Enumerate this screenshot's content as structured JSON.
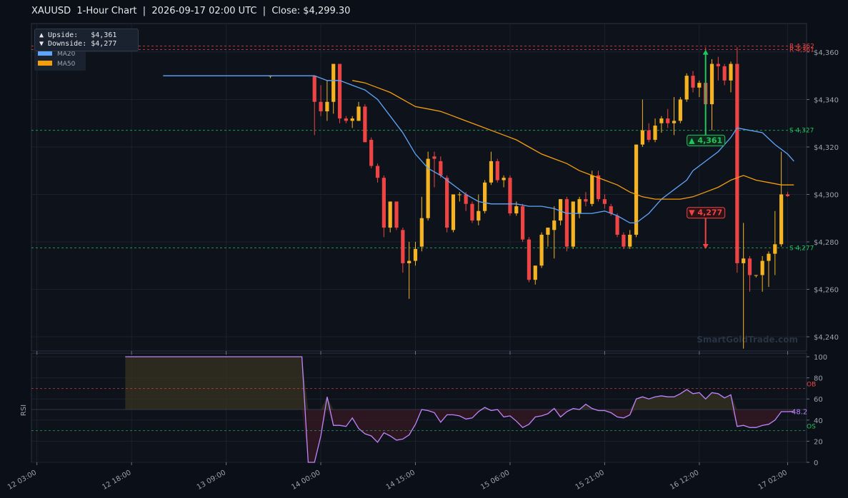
{
  "title": "XAUUSD  1-Hour Chart  |  2026-09-17 02:00 UTC  |  Close: $4,299.30",
  "annotation": {
    "upside": "▲ Upside:   $4,361",
    "downside": "▼ Downside: $4,277"
  },
  "watermark": "SmartGoldTrade.com",
  "colors": {
    "bg": "#0b0f17",
    "up": "#f5b321",
    "down": "#ef4444",
    "ma20": "#60a5fa",
    "ma50": "#f59e0b",
    "rsi": "#c084fc",
    "support": "#22c55e",
    "resistance": "#ef4444"
  },
  "chart_data": [
    {
      "type": "candlestick",
      "title": "XAUUSD  1-Hour Chart",
      "ylim": [
        4234,
        4372
      ],
      "yticks": [
        "$4,240",
        "$4,260",
        "$4,280",
        "$4,300",
        "$4,320",
        "$4,340",
        "$4,360"
      ],
      "xticks": [
        "12 03:00",
        "12 18:00",
        "13 09:00",
        "14 00:00",
        "14 15:00",
        "15 06:00",
        "15 21:00",
        "16 12:00",
        "17 02:00"
      ],
      "legend": [
        "MA20",
        "MA50"
      ],
      "levels": [
        {
          "label": "R 4,362",
          "value": 4362.5,
          "kind": "resistance"
        },
        {
          "label": "R 4,361",
          "value": 4361,
          "kind": "resistance"
        },
        {
          "label": "S 4,327",
          "value": 4327,
          "kind": "support"
        },
        {
          "label": "S 4,277",
          "value": 4277.5,
          "kind": "support"
        }
      ],
      "targets": [
        {
          "label": "▲ 4,361",
          "value": 4361,
          "from": 4325,
          "dir": "up"
        },
        {
          "label": "▼ 4,277",
          "value": 4277,
          "from": 4290,
          "dir": "down"
        }
      ],
      "candles": [
        {
          "i": 37,
          "o": 4350,
          "h": 4350,
          "l": 4349,
          "c": 4350
        },
        {
          "i": 44,
          "o": 4350,
          "h": 4350,
          "l": 4325,
          "c": 4339
        },
        {
          "i": 45,
          "o": 4339,
          "h": 4346,
          "l": 4333,
          "c": 4335
        },
        {
          "i": 46,
          "o": 4335,
          "h": 4348,
          "l": 4331,
          "c": 4339
        },
        {
          "i": 47,
          "o": 4339,
          "h": 4355,
          "l": 4334,
          "c": 4355
        },
        {
          "i": 48,
          "o": 4355,
          "h": 4355,
          "l": 4330,
          "c": 4332
        },
        {
          "i": 49,
          "o": 4332,
          "h": 4333,
          "l": 4330,
          "c": 4331
        },
        {
          "i": 50,
          "o": 4331,
          "h": 4333,
          "l": 4328,
          "c": 4332
        },
        {
          "i": 51,
          "o": 4331,
          "h": 4339,
          "l": 4331,
          "c": 4337
        },
        {
          "i": 52,
          "o": 4337,
          "h": 4338,
          "l": 4322,
          "c": 4322
        },
        {
          "i": 53,
          "o": 4323,
          "h": 4324,
          "l": 4311,
          "c": 4312
        },
        {
          "i": 54,
          "o": 4312,
          "h": 4313,
          "l": 4305,
          "c": 4307
        },
        {
          "i": 55,
          "o": 4307,
          "h": 4308,
          "l": 4282,
          "c": 4286
        },
        {
          "i": 56,
          "o": 4286,
          "h": 4297,
          "l": 4284,
          "c": 4297
        },
        {
          "i": 57,
          "o": 4297,
          "h": 4297,
          "l": 4285,
          "c": 4286
        },
        {
          "i": 58,
          "o": 4285,
          "h": 4286,
          "l": 4267,
          "c": 4271
        },
        {
          "i": 59,
          "o": 4271,
          "h": 4280,
          "l": 4256,
          "c": 4272
        },
        {
          "i": 60,
          "o": 4272,
          "h": 4280,
          "l": 4270,
          "c": 4277
        },
        {
          "i": 61,
          "o": 4278,
          "h": 4299,
          "l": 4276,
          "c": 4290
        },
        {
          "i": 62,
          "o": 4290,
          "h": 4318,
          "l": 4289,
          "c": 4315
        },
        {
          "i": 63,
          "o": 4316,
          "h": 4318,
          "l": 4303,
          "c": 4315
        },
        {
          "i": 64,
          "o": 4314,
          "h": 4316,
          "l": 4307,
          "c": 4308
        },
        {
          "i": 65,
          "o": 4307,
          "h": 4308,
          "l": 4284,
          "c": 4286
        },
        {
          "i": 66,
          "o": 4285,
          "h": 4300,
          "l": 4284,
          "c": 4300
        },
        {
          "i": 67,
          "o": 4300,
          "h": 4301,
          "l": 4297,
          "c": 4300
        },
        {
          "i": 68,
          "o": 4300,
          "h": 4301,
          "l": 4293,
          "c": 4296
        },
        {
          "i": 69,
          "o": 4296,
          "h": 4297,
          "l": 4288,
          "c": 4289
        },
        {
          "i": 70,
          "o": 4289,
          "h": 4300,
          "l": 4287,
          "c": 4293
        },
        {
          "i": 71,
          "o": 4293,
          "h": 4306,
          "l": 4292,
          "c": 4305
        },
        {
          "i": 72,
          "o": 4305,
          "h": 4318,
          "l": 4304,
          "c": 4314
        },
        {
          "i": 73,
          "o": 4314,
          "h": 4315,
          "l": 4305,
          "c": 4306
        },
        {
          "i": 74,
          "o": 4306,
          "h": 4308,
          "l": 4303,
          "c": 4307
        },
        {
          "i": 75,
          "o": 4307,
          "h": 4308,
          "l": 4291,
          "c": 4292
        },
        {
          "i": 76,
          "o": 4292,
          "h": 4297,
          "l": 4291,
          "c": 4295
        },
        {
          "i": 77,
          "o": 4295,
          "h": 4296,
          "l": 4280,
          "c": 4281
        },
        {
          "i": 78,
          "o": 4281,
          "h": 4282,
          "l": 4263,
          "c": 4264
        },
        {
          "i": 79,
          "o": 4264,
          "h": 4270,
          "l": 4262,
          "c": 4270
        },
        {
          "i": 80,
          "o": 4270,
          "h": 4284,
          "l": 4269,
          "c": 4283
        },
        {
          "i": 81,
          "o": 4283,
          "h": 4286,
          "l": 4278,
          "c": 4286
        },
        {
          "i": 82,
          "o": 4285,
          "h": 4295,
          "l": 4273,
          "c": 4289
        },
        {
          "i": 83,
          "o": 4289,
          "h": 4298,
          "l": 4287,
          "c": 4298
        },
        {
          "i": 84,
          "o": 4298,
          "h": 4299,
          "l": 4276,
          "c": 4278
        },
        {
          "i": 85,
          "o": 4278,
          "h": 4297,
          "l": 4277,
          "c": 4297
        },
        {
          "i": 86,
          "o": 4292,
          "h": 4299,
          "l": 4290,
          "c": 4298
        },
        {
          "i": 87,
          "o": 4298,
          "h": 4301,
          "l": 4295,
          "c": 4297
        },
        {
          "i": 88,
          "o": 4296,
          "h": 4310,
          "l": 4295,
          "c": 4308
        },
        {
          "i": 89,
          "o": 4308,
          "h": 4310,
          "l": 4297,
          "c": 4298
        },
        {
          "i": 90,
          "o": 4298,
          "h": 4300,
          "l": 4294,
          "c": 4296
        },
        {
          "i": 91,
          "o": 4295,
          "h": 4296,
          "l": 4291,
          "c": 4292
        },
        {
          "i": 92,
          "o": 4291,
          "h": 4292,
          "l": 4282,
          "c": 4283
        },
        {
          "i": 93,
          "o": 4283,
          "h": 4284,
          "l": 4277,
          "c": 4278
        },
        {
          "i": 94,
          "o": 4278,
          "h": 4285,
          "l": 4277,
          "c": 4283
        },
        {
          "i": 95,
          "o": 4283,
          "h": 4321,
          "l": 4282,
          "c": 4321
        },
        {
          "i": 96,
          "o": 4321,
          "h": 4340,
          "l": 4320,
          "c": 4327
        },
        {
          "i": 97,
          "o": 4327,
          "h": 4330,
          "l": 4322,
          "c": 4323
        },
        {
          "i": 98,
          "o": 4323,
          "h": 4332,
          "l": 4322,
          "c": 4329
        },
        {
          "i": 99,
          "o": 4330,
          "h": 4333,
          "l": 4326,
          "c": 4332
        },
        {
          "i": 100,
          "o": 4332,
          "h": 4336,
          "l": 4328,
          "c": 4330
        },
        {
          "i": 101,
          "o": 4330,
          "h": 4341,
          "l": 4325,
          "c": 4331
        },
        {
          "i": 102,
          "o": 4331,
          "h": 4341,
          "l": 4330,
          "c": 4340
        },
        {
          "i": 103,
          "o": 4340,
          "h": 4351,
          "l": 4339,
          "c": 4350
        },
        {
          "i": 104,
          "o": 4350,
          "h": 4352,
          "l": 4343,
          "c": 4345
        },
        {
          "i": 105,
          "o": 4345,
          "h": 4348,
          "l": 4341,
          "c": 4347
        },
        {
          "i": 106,
          "o": 4347,
          "h": 4362,
          "l": 4337,
          "c": 4338
        },
        {
          "i": 107,
          "o": 4338,
          "h": 4357,
          "l": 4327,
          "c": 4355
        },
        {
          "i": 108,
          "o": 4355,
          "h": 4358,
          "l": 4348,
          "c": 4354
        },
        {
          "i": 109,
          "o": 4354,
          "h": 4355,
          "l": 4346,
          "c": 4348
        },
        {
          "i": 110,
          "o": 4348,
          "h": 4356,
          "l": 4343,
          "c": 4355
        },
        {
          "i": 111,
          "o": 4355,
          "h": 4362,
          "l": 4267,
          "c": 4271
        },
        {
          "i": 112,
          "o": 4271,
          "h": 4288,
          "l": 4235,
          "c": 4273
        },
        {
          "i": 113,
          "o": 4273,
          "h": 4274,
          "l": 4259,
          "c": 4266
        },
        {
          "i": 114,
          "o": 4266,
          "h": 4266,
          "l": 4265,
          "c": 4266
        },
        {
          "i": 115,
          "o": 4266,
          "h": 4274,
          "l": 4259,
          "c": 4272
        },
        {
          "i": 116,
          "o": 4272,
          "h": 4276,
          "l": 4261,
          "c": 4275
        },
        {
          "i": 117,
          "o": 4275,
          "h": 4293,
          "l": 4266,
          "c": 4279
        },
        {
          "i": 118,
          "o": 4279,
          "h": 4318,
          "l": 4278,
          "c": 4300
        },
        {
          "i": 119,
          "o": 4300,
          "h": 4301,
          "l": 4299,
          "c": 4299.3
        }
      ],
      "series": [
        {
          "name": "MA20",
          "points": [
            [
              20,
              4350
            ],
            [
              44,
              4350
            ],
            [
              46,
              4348
            ],
            [
              48,
              4348
            ],
            [
              50,
              4346
            ],
            [
              52,
              4344
            ],
            [
              54,
              4340
            ],
            [
              56,
              4333
            ],
            [
              58,
              4326
            ],
            [
              60,
              4317
            ],
            [
              62,
              4311
            ],
            [
              64,
              4308
            ],
            [
              66,
              4304
            ],
            [
              68,
              4300
            ],
            [
              70,
              4297
            ],
            [
              72,
              4296
            ],
            [
              74,
              4296
            ],
            [
              76,
              4296
            ],
            [
              78,
              4295
            ],
            [
              80,
              4295
            ],
            [
              82,
              4294
            ],
            [
              84,
              4292
            ],
            [
              86,
              4292
            ],
            [
              88,
              4292
            ],
            [
              90,
              4293
            ],
            [
              92,
              4291
            ],
            [
              94,
              4288
            ],
            [
              95,
              4288
            ],
            [
              97,
              4292
            ],
            [
              99,
              4298
            ],
            [
              101,
              4302
            ],
            [
              103,
              4306
            ],
            [
              104,
              4310
            ],
            [
              106,
              4314
            ],
            [
              108,
              4318
            ],
            [
              110,
              4324
            ],
            [
              111,
              4328
            ],
            [
              113,
              4327
            ],
            [
              115,
              4326
            ],
            [
              117,
              4321
            ],
            [
              119,
              4317
            ],
            [
              120,
              4314
            ]
          ]
        },
        {
          "name": "MA50",
          "points": [
            [
              50,
              4348
            ],
            [
              52,
              4347
            ],
            [
              54,
              4345
            ],
            [
              56,
              4343
            ],
            [
              58,
              4340
            ],
            [
              60,
              4337
            ],
            [
              62,
              4336
            ],
            [
              64,
              4335
            ],
            [
              66,
              4333
            ],
            [
              68,
              4331
            ],
            [
              70,
              4329
            ],
            [
              72,
              4327
            ],
            [
              74,
              4325
            ],
            [
              76,
              4323
            ],
            [
              78,
              4320
            ],
            [
              80,
              4317
            ],
            [
              82,
              4315
            ],
            [
              84,
              4313
            ],
            [
              86,
              4310
            ],
            [
              88,
              4308
            ],
            [
              90,
              4306
            ],
            [
              92,
              4304
            ],
            [
              94,
              4301
            ],
            [
              96,
              4299
            ],
            [
              98,
              4298
            ],
            [
              100,
              4298
            ],
            [
              102,
              4298
            ],
            [
              104,
              4299
            ],
            [
              106,
              4301
            ],
            [
              108,
              4303
            ],
            [
              110,
              4306
            ],
            [
              112,
              4308
            ],
            [
              114,
              4306
            ],
            [
              116,
              4305
            ],
            [
              118,
              4304
            ],
            [
              120,
              4304
            ]
          ]
        }
      ]
    },
    {
      "type": "line",
      "ylabel": "RSI",
      "ylim": [
        0,
        100
      ],
      "yticks": [
        "0",
        "20",
        "40",
        "60",
        "80",
        "100"
      ],
      "ob": 70,
      "os": 30,
      "ob_label": "OB",
      "os_label": "OS",
      "last_label": "48.2",
      "x": [
        14,
        42,
        43,
        44,
        45,
        46,
        47,
        48,
        49,
        50,
        51,
        52,
        53,
        54,
        55,
        56,
        57,
        58,
        59,
        60,
        61,
        62,
        63,
        64,
        65,
        66,
        67,
        68,
        69,
        70,
        71,
        72,
        73,
        74,
        75,
        76,
        77,
        78,
        79,
        80,
        81,
        82,
        83,
        84,
        85,
        86,
        87,
        88,
        89,
        90,
        91,
        92,
        93,
        94,
        95,
        96,
        97,
        98,
        99,
        100,
        101,
        102,
        103,
        104,
        105,
        106,
        107,
        108,
        109,
        110,
        111,
        112,
        113,
        114,
        115,
        116,
        117,
        118,
        119,
        120
      ],
      "values": [
        100,
        100,
        0,
        0,
        25,
        62,
        35,
        35,
        34,
        42,
        32,
        27,
        25,
        19,
        28,
        25,
        21,
        22,
        26,
        36,
        50,
        49,
        47,
        38,
        45,
        45,
        44,
        41,
        42,
        48,
        52,
        49,
        50,
        43,
        44,
        39,
        33,
        36,
        43,
        44,
        46,
        51,
        43,
        48,
        51,
        50,
        55,
        51,
        49,
        49,
        47,
        43,
        42,
        45,
        60,
        62,
        60,
        62,
        63,
        62,
        62,
        65,
        69,
        65,
        66,
        60,
        66,
        65,
        61,
        64,
        34,
        35,
        33,
        33,
        35,
        36,
        40,
        48,
        48,
        48.2
      ]
    }
  ]
}
